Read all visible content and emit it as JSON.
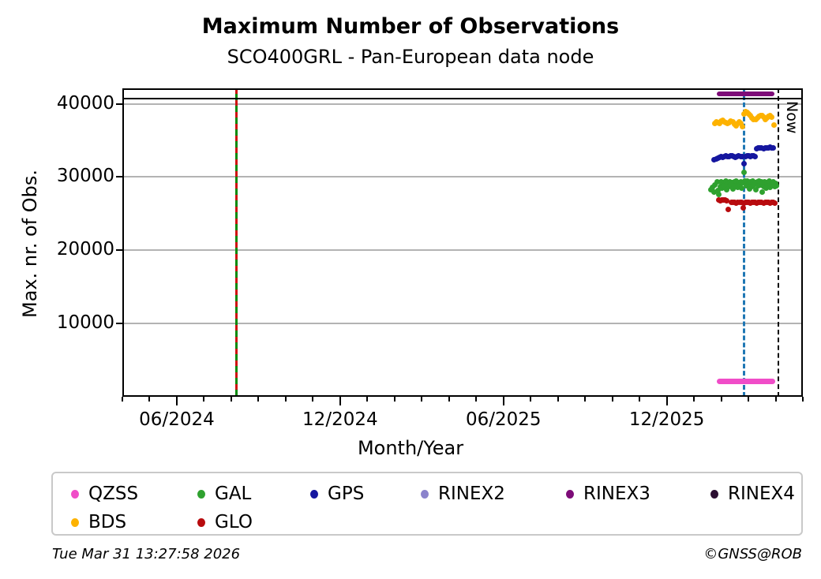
{
  "footer": {
    "timestamp": "Tue Mar 31 13:27:58 2026",
    "copyright": "©GNSS@ROB"
  },
  "chart_data": {
    "type": "scatter",
    "title": "Maximum Number of Observations",
    "subtitle": "SCO400GRL - Pan-European data node",
    "xlabel": "Month/Year",
    "ylabel": "Max. nr. of Obs.",
    "x_axis": {
      "unit": "months_since_2024-04-01",
      "min": 0,
      "max": 25,
      "minor_tick_every": 1,
      "major_ticks": [
        {
          "m": 2,
          "label": "06/2024"
        },
        {
          "m": 8,
          "label": "12/2024"
        },
        {
          "m": 14,
          "label": "06/2025"
        },
        {
          "m": 20,
          "label": "12/2025"
        }
      ]
    },
    "y_axis": {
      "min": 0,
      "max": 42100,
      "ticks": [
        10000,
        20000,
        30000,
        40000
      ],
      "grid": true,
      "grid_color": "#b3b3b3"
    },
    "lines": {
      "max_obs_line": {
        "value": 40750,
        "color": "#000000",
        "style": "solid"
      },
      "event_line": {
        "m": 4.18,
        "green": "#0a8a0a",
        "red": "#cf1211",
        "style": "green solid with red dashes"
      },
      "latency_line": {
        "m": 22.85,
        "color": "#1f77b4",
        "style": "dashed"
      },
      "now_line": {
        "m": 24.1,
        "color": "#000000",
        "style": "dashed",
        "label": "Now"
      }
    },
    "legend": {
      "position": "bottom",
      "items": [
        {
          "label": "QZSS",
          "color": "#f04dc8",
          "col": 0,
          "row": 0
        },
        {
          "label": "GAL",
          "color": "#2fa12f",
          "col": 1,
          "row": 0
        },
        {
          "label": "GPS",
          "color": "#15169f",
          "col": 2,
          "row": 0
        },
        {
          "label": "RINEX2",
          "color": "#8b83cc",
          "col": 3,
          "row": 0
        },
        {
          "label": "RINEX3",
          "color": "#7d0c78",
          "col": 4,
          "row": 0
        },
        {
          "label": "RINEX4",
          "color": "#2b0e31",
          "col": 5,
          "row": 0
        },
        {
          "label": "BDS",
          "color": "#fdb200",
          "col": 0,
          "row": 1
        },
        {
          "label": "GLO",
          "color": "#b80b0e",
          "col": 1,
          "row": 1
        }
      ]
    },
    "series": [
      {
        "name": "RINEX3",
        "color": "#7d0c78",
        "render": "thickline",
        "segments": [
          {
            "from": 21.84,
            "to": 23.96,
            "value": 41350,
            "thickness": 6
          }
        ]
      },
      {
        "name": "QZSS",
        "color": "#f04dc8",
        "render": "thickline",
        "segments": [
          {
            "from": 21.84,
            "to": 23.98,
            "value": 2080,
            "thickness": 7
          }
        ]
      },
      {
        "name": "BDS",
        "color": "#fdb200",
        "render": "points",
        "points": [
          [
            21.76,
            37350
          ],
          [
            21.82,
            37500
          ],
          [
            21.88,
            37420
          ],
          [
            21.94,
            37280
          ],
          [
            22.0,
            37600
          ],
          [
            22.06,
            37700
          ],
          [
            22.12,
            37550
          ],
          [
            22.18,
            37380
          ],
          [
            22.24,
            37300
          ],
          [
            22.3,
            37450
          ],
          [
            22.36,
            37620
          ],
          [
            22.42,
            37500
          ],
          [
            22.48,
            37150
          ],
          [
            22.54,
            36950
          ],
          [
            22.6,
            37300
          ],
          [
            22.66,
            37550
          ],
          [
            22.72,
            37350
          ],
          [
            22.78,
            36900
          ],
          [
            22.84,
            38650
          ],
          [
            22.9,
            38900
          ],
          [
            22.96,
            38820
          ],
          [
            23.02,
            38600
          ],
          [
            23.08,
            38380
          ],
          [
            23.14,
            38080
          ],
          [
            23.2,
            37880
          ],
          [
            23.26,
            37800
          ],
          [
            23.32,
            38020
          ],
          [
            23.38,
            38250
          ],
          [
            23.44,
            38420
          ],
          [
            23.5,
            38350
          ],
          [
            23.56,
            38120
          ],
          [
            23.62,
            37900
          ],
          [
            23.68,
            38100
          ],
          [
            23.74,
            38300
          ],
          [
            23.8,
            38380
          ],
          [
            23.86,
            38200
          ],
          [
            23.95,
            37100
          ]
        ]
      },
      {
        "name": "GPS",
        "color": "#15169f",
        "render": "points",
        "points": [
          [
            21.75,
            32350
          ],
          [
            21.81,
            32420
          ],
          [
            21.87,
            32600
          ],
          [
            21.93,
            32720
          ],
          [
            21.99,
            32800
          ],
          [
            22.05,
            32720
          ],
          [
            22.11,
            32840
          ],
          [
            22.17,
            32900
          ],
          [
            22.23,
            32820
          ],
          [
            22.29,
            32760
          ],
          [
            22.35,
            32860
          ],
          [
            22.41,
            32900
          ],
          [
            22.47,
            32800
          ],
          [
            22.53,
            32720
          ],
          [
            22.59,
            32800
          ],
          [
            22.65,
            32860
          ],
          [
            22.71,
            32780
          ],
          [
            22.77,
            32820
          ],
          [
            22.83,
            31850
          ],
          [
            22.89,
            32800
          ],
          [
            22.95,
            32860
          ],
          [
            23.01,
            32900
          ],
          [
            23.07,
            32820
          ],
          [
            23.13,
            32860
          ],
          [
            23.19,
            32900
          ],
          [
            23.25,
            32840
          ],
          [
            23.31,
            33900
          ],
          [
            23.37,
            33960
          ],
          [
            23.43,
            34020
          ],
          [
            23.49,
            33960
          ],
          [
            23.55,
            33900
          ],
          [
            23.61,
            33960
          ],
          [
            23.67,
            34020
          ],
          [
            23.73,
            33960
          ],
          [
            23.79,
            34050
          ],
          [
            23.85,
            33990
          ],
          [
            23.91,
            33950
          ]
        ]
      },
      {
        "name": "GAL",
        "color": "#2fa12f",
        "render": "points",
        "points": [
          [
            21.62,
            28300
          ],
          [
            21.68,
            28600
          ],
          [
            21.74,
            27900
          ],
          [
            21.78,
            28900
          ],
          [
            21.84,
            29300
          ],
          [
            21.88,
            28200
          ],
          [
            21.92,
            27600
          ],
          [
            21.96,
            28700
          ],
          [
            22.0,
            29350
          ],
          [
            22.04,
            28500
          ],
          [
            22.08,
            29200
          ],
          [
            22.12,
            28800
          ],
          [
            22.16,
            29450
          ],
          [
            22.2,
            28300
          ],
          [
            22.24,
            29250
          ],
          [
            22.28,
            28700
          ],
          [
            22.32,
            29350
          ],
          [
            22.36,
            28900
          ],
          [
            22.4,
            29200
          ],
          [
            22.44,
            28400
          ],
          [
            22.48,
            29300
          ],
          [
            22.52,
            28800
          ],
          [
            22.56,
            29400
          ],
          [
            22.6,
            28600
          ],
          [
            22.64,
            29250
          ],
          [
            22.68,
            28900
          ],
          [
            22.72,
            29350
          ],
          [
            22.76,
            28500
          ],
          [
            22.8,
            29200
          ],
          [
            22.84,
            30620
          ],
          [
            22.88,
            29400
          ],
          [
            22.92,
            28800
          ],
          [
            22.96,
            29500
          ],
          [
            23.0,
            29000
          ],
          [
            23.04,
            28400
          ],
          [
            23.08,
            29300
          ],
          [
            23.12,
            28700
          ],
          [
            23.16,
            29450
          ],
          [
            23.2,
            28900
          ],
          [
            23.24,
            29200
          ],
          [
            23.28,
            28300
          ],
          [
            23.32,
            29350
          ],
          [
            23.36,
            28800
          ],
          [
            23.4,
            29500
          ],
          [
            23.44,
            28900
          ],
          [
            23.48,
            29300
          ],
          [
            23.52,
            27900
          ],
          [
            23.56,
            28700
          ],
          [
            23.6,
            29350
          ],
          [
            23.64,
            28500
          ],
          [
            23.68,
            29200
          ],
          [
            23.72,
            28800
          ],
          [
            23.76,
            29400
          ],
          [
            23.8,
            28600
          ],
          [
            23.84,
            29250
          ],
          [
            23.88,
            28900
          ],
          [
            23.92,
            29350
          ],
          [
            23.96,
            28700
          ],
          [
            24.0,
            29100
          ],
          [
            24.04,
            28800
          ]
        ]
      },
      {
        "name": "GLO",
        "color": "#b80b0e",
        "render": "points",
        "points": [
          [
            21.9,
            26850
          ],
          [
            21.96,
            26800
          ],
          [
            22.02,
            26850
          ],
          [
            22.08,
            26900
          ],
          [
            22.14,
            26850
          ],
          [
            22.2,
            26800
          ],
          [
            22.26,
            25560
          ],
          [
            22.38,
            26500
          ],
          [
            22.44,
            26550
          ],
          [
            22.5,
            26500
          ],
          [
            22.56,
            26450
          ],
          [
            22.62,
            26500
          ],
          [
            22.68,
            26550
          ],
          [
            22.74,
            26500
          ],
          [
            22.8,
            25780
          ],
          [
            22.83,
            26450
          ],
          [
            22.89,
            26500
          ],
          [
            22.95,
            26550
          ],
          [
            23.01,
            26500
          ],
          [
            23.07,
            26450
          ],
          [
            23.13,
            26500
          ],
          [
            23.19,
            26550
          ],
          [
            23.25,
            26500
          ],
          [
            23.31,
            26450
          ],
          [
            23.37,
            26500
          ],
          [
            23.43,
            26550
          ],
          [
            23.49,
            26500
          ],
          [
            23.55,
            26450
          ],
          [
            23.61,
            26500
          ],
          [
            23.67,
            26550
          ],
          [
            23.73,
            26500
          ],
          [
            23.79,
            26450
          ],
          [
            23.85,
            26500
          ],
          [
            23.91,
            26550
          ],
          [
            23.97,
            26450
          ]
        ]
      }
    ]
  }
}
